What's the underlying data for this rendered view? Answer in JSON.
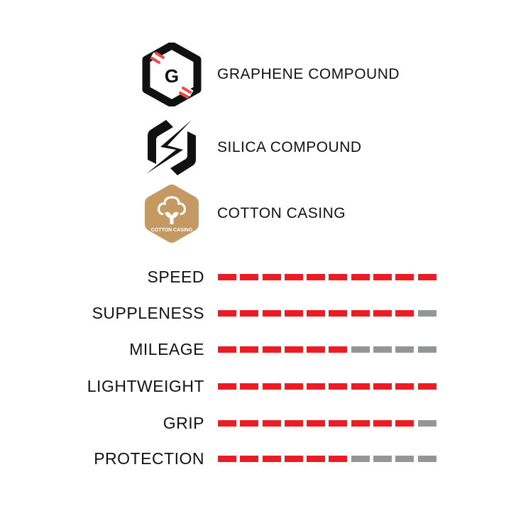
{
  "features": [
    {
      "label": "GRAPHENE COMPOUND",
      "icon": "graphene-hexagon-icon",
      "icon_letter": "G"
    },
    {
      "label": "SILICA COMPOUND",
      "icon": "silica-lightning-icon"
    },
    {
      "label": "COTTON CASING",
      "icon": "cotton-casing-badge-icon",
      "badge_text": "COTTON CASING"
    }
  ],
  "ratings_max": 10,
  "ratings": [
    {
      "label": "SPEED",
      "value": 10
    },
    {
      "label": "SUPPLENESS",
      "value": 9
    },
    {
      "label": "MILEAGE",
      "value": 6
    },
    {
      "label": "LIGHTWEIGHT",
      "value": 10
    },
    {
      "label": "GRIP",
      "value": 9
    },
    {
      "label": "PROTECTION",
      "value": 6
    }
  ],
  "colors": {
    "filled": "#ed1c24",
    "empty": "#939598",
    "graphene_accent": "#ef4b46",
    "cotton": "#c49a62"
  }
}
